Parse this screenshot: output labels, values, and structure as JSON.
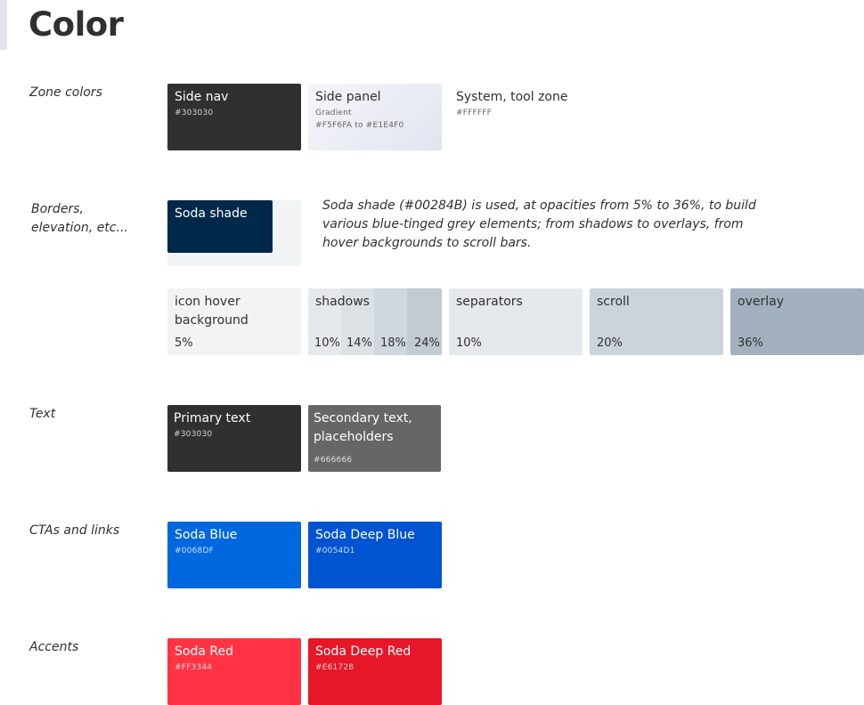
{
  "page": {
    "title": "Color"
  },
  "zone": {
    "label": "Zone colors",
    "side_nav": {
      "name": "Side nav",
      "hex": "#303030",
      "color": "#303030"
    },
    "side_panel": {
      "name": "Side panel",
      "sub": "Gradient",
      "hex": "#F5F6FA to #E1E4F0",
      "color_from": "#F5F6FA",
      "color_to": "#E1E4F0"
    },
    "system": {
      "name": "System, tool zone",
      "hex": "#FFFFFF",
      "color": "#FFFFFF"
    }
  },
  "borders": {
    "label": "Borders, elevation, etc...",
    "chip_label": "Soda shade",
    "color": "#00284B",
    "description": "Soda shade (#00284B) is used, at opacities from 5% to 36%, to build various blue-tinged grey elements; from shadows to overlays, from hover backgrounds to scroll bars.",
    "items": [
      {
        "name": "icon hover background",
        "pct": "5%",
        "color": "#F2F3F5"
      },
      {
        "name": "shadows",
        "segments": [
          "10%",
          "14%",
          "18%",
          "24%"
        ],
        "colors": [
          "#E5E9ED",
          "#DCE1E6",
          "#D1D7DE",
          "#C2CAD2"
        ]
      },
      {
        "name": "separators",
        "pct": "10%",
        "color": "#E5E9ED"
      },
      {
        "name": "scroll",
        "pct": "20%",
        "color": "#CCD4DB"
      },
      {
        "name": "overlay",
        "pct": "36%",
        "color": "#A3B1BF"
      }
    ]
  },
  "text": {
    "label": "Text",
    "primary": {
      "name": "Primary text",
      "hex": "#303030",
      "color": "#303030"
    },
    "secondary": {
      "name": "Secondary text, placeholders",
      "hex": "#666666",
      "color": "#666666"
    }
  },
  "cta": {
    "label": "CTAs and links",
    "blue": {
      "name": "Soda Blue",
      "hex": "#0068DF",
      "color": "#0068DF"
    },
    "deep_blue": {
      "name": "Soda Deep Blue",
      "hex": "#0054D1",
      "color": "#0054D1"
    }
  },
  "accents": {
    "label": "Accents",
    "red": {
      "name": "Soda Red",
      "hex": "#FF3344",
      "color": "#FF3344"
    },
    "deep_red": {
      "name": "Soda Deep Red",
      "hex": "#E61728",
      "color": "#E61728"
    }
  }
}
